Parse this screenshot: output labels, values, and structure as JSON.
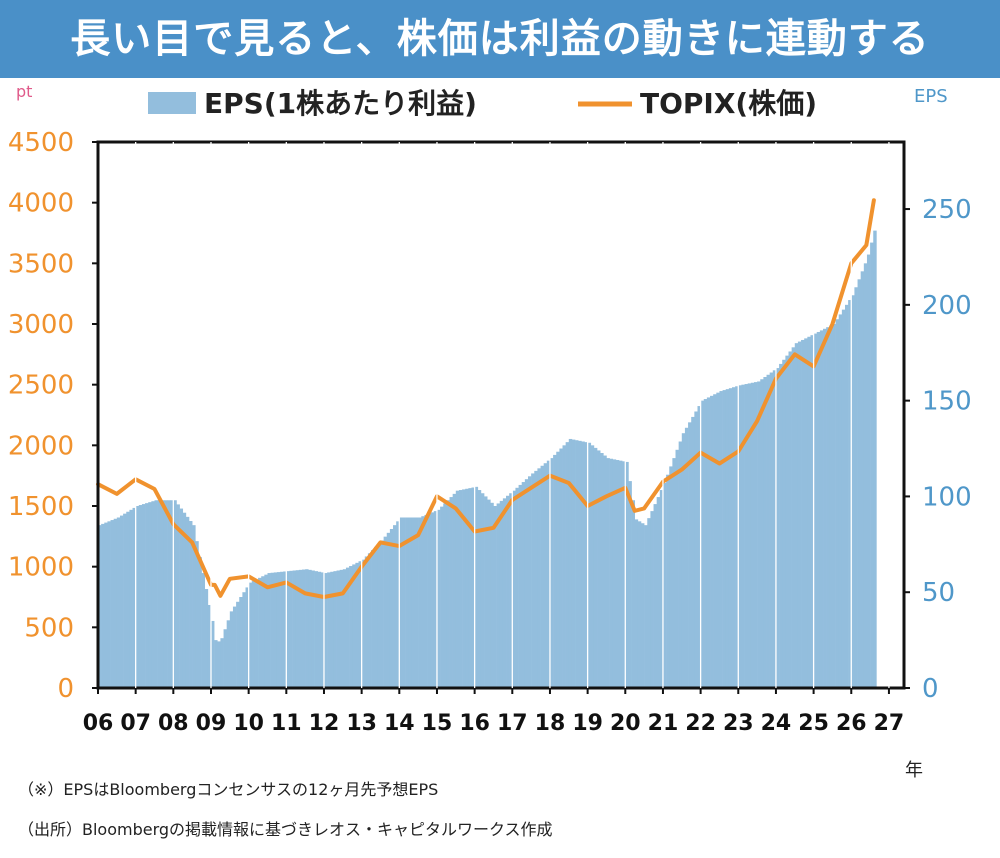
{
  "page": {
    "title": "長い目で見ると、株価は利益の動きに連動する",
    "unit_left": "pt",
    "unit_right": "EPS",
    "note": "（※）EPSはBloombergコンセンサスの12ヶ月先予想EPS",
    "source": "（出所）Bloombergの掲載情報に基づきレオス・キャピタルワークス作成"
  },
  "colors": {
    "banner": "#4a90c8",
    "eps_bar": "#93bedd",
    "topix_line": "#f0922e",
    "left_axis": "#f0922e",
    "right_axis": "#4f97c9"
  },
  "chart_data": {
    "type": "bar+line",
    "legend_position": "top",
    "x_unit": "年",
    "x_tick_labels": [
      "06",
      "07",
      "08",
      "09",
      "10",
      "11",
      "12",
      "13",
      "14",
      "15",
      "16",
      "17",
      "18",
      "19",
      "20",
      "21",
      "22",
      "23",
      "24",
      "25",
      "26",
      "27"
    ],
    "y_left": {
      "ticks": [
        0,
        500,
        1000,
        1500,
        2000,
        2500,
        3000,
        3500,
        4000,
        4500
      ],
      "lim": [
        0,
        4500
      ]
    },
    "y_right": {
      "ticks": [
        0,
        50,
        100,
        150,
        200,
        250
      ],
      "lim": [
        0,
        285
      ]
    },
    "x": [
      2006.0,
      2006.5,
      2007.0,
      2007.5,
      2008.0,
      2008.5,
      2009.0,
      2009.1,
      2009.25,
      2009.5,
      2010.0,
      2010.5,
      2011.0,
      2011.5,
      2012.0,
      2012.5,
      2013.0,
      2013.5,
      2014.0,
      2014.5,
      2015.0,
      2015.5,
      2016.0,
      2016.5,
      2017.0,
      2017.5,
      2018.0,
      2018.5,
      2019.0,
      2019.5,
      2020.0,
      2020.25,
      2020.5,
      2021.0,
      2021.5,
      2022.0,
      2022.5,
      2023.0,
      2023.5,
      2024.0,
      2024.5,
      2025.0,
      2025.5,
      2026.0,
      2026.4,
      2026.6
    ],
    "series": [
      {
        "name": "EPS(1株あたり利益)",
        "type": "bar",
        "axis": "right",
        "values": [
          85,
          89,
          95,
          98,
          98,
          85,
          35,
          23,
          26,
          40,
          55,
          60,
          61,
          62,
          60,
          62,
          67,
          77,
          89,
          89,
          93,
          103,
          105,
          95,
          103,
          112,
          120,
          130,
          128,
          120,
          118,
          88,
          85,
          107,
          133,
          150,
          155,
          158,
          160,
          167,
          180,
          185,
          190,
          205,
          225,
          240
        ]
      },
      {
        "name": "TOPIX(株価)",
        "type": "line",
        "axis": "left",
        "values": [
          1680,
          1600,
          1720,
          1640,
          1350,
          1200,
          850,
          850,
          760,
          900,
          920,
          830,
          870,
          780,
          750,
          780,
          1000,
          1200,
          1170,
          1260,
          1580,
          1480,
          1290,
          1320,
          1550,
          1650,
          1750,
          1690,
          1500,
          1580,
          1650,
          1460,
          1480,
          1700,
          1800,
          1940,
          1850,
          1950,
          2200,
          2550,
          2750,
          2650,
          3000,
          3500,
          3650,
          4020
        ]
      }
    ]
  }
}
